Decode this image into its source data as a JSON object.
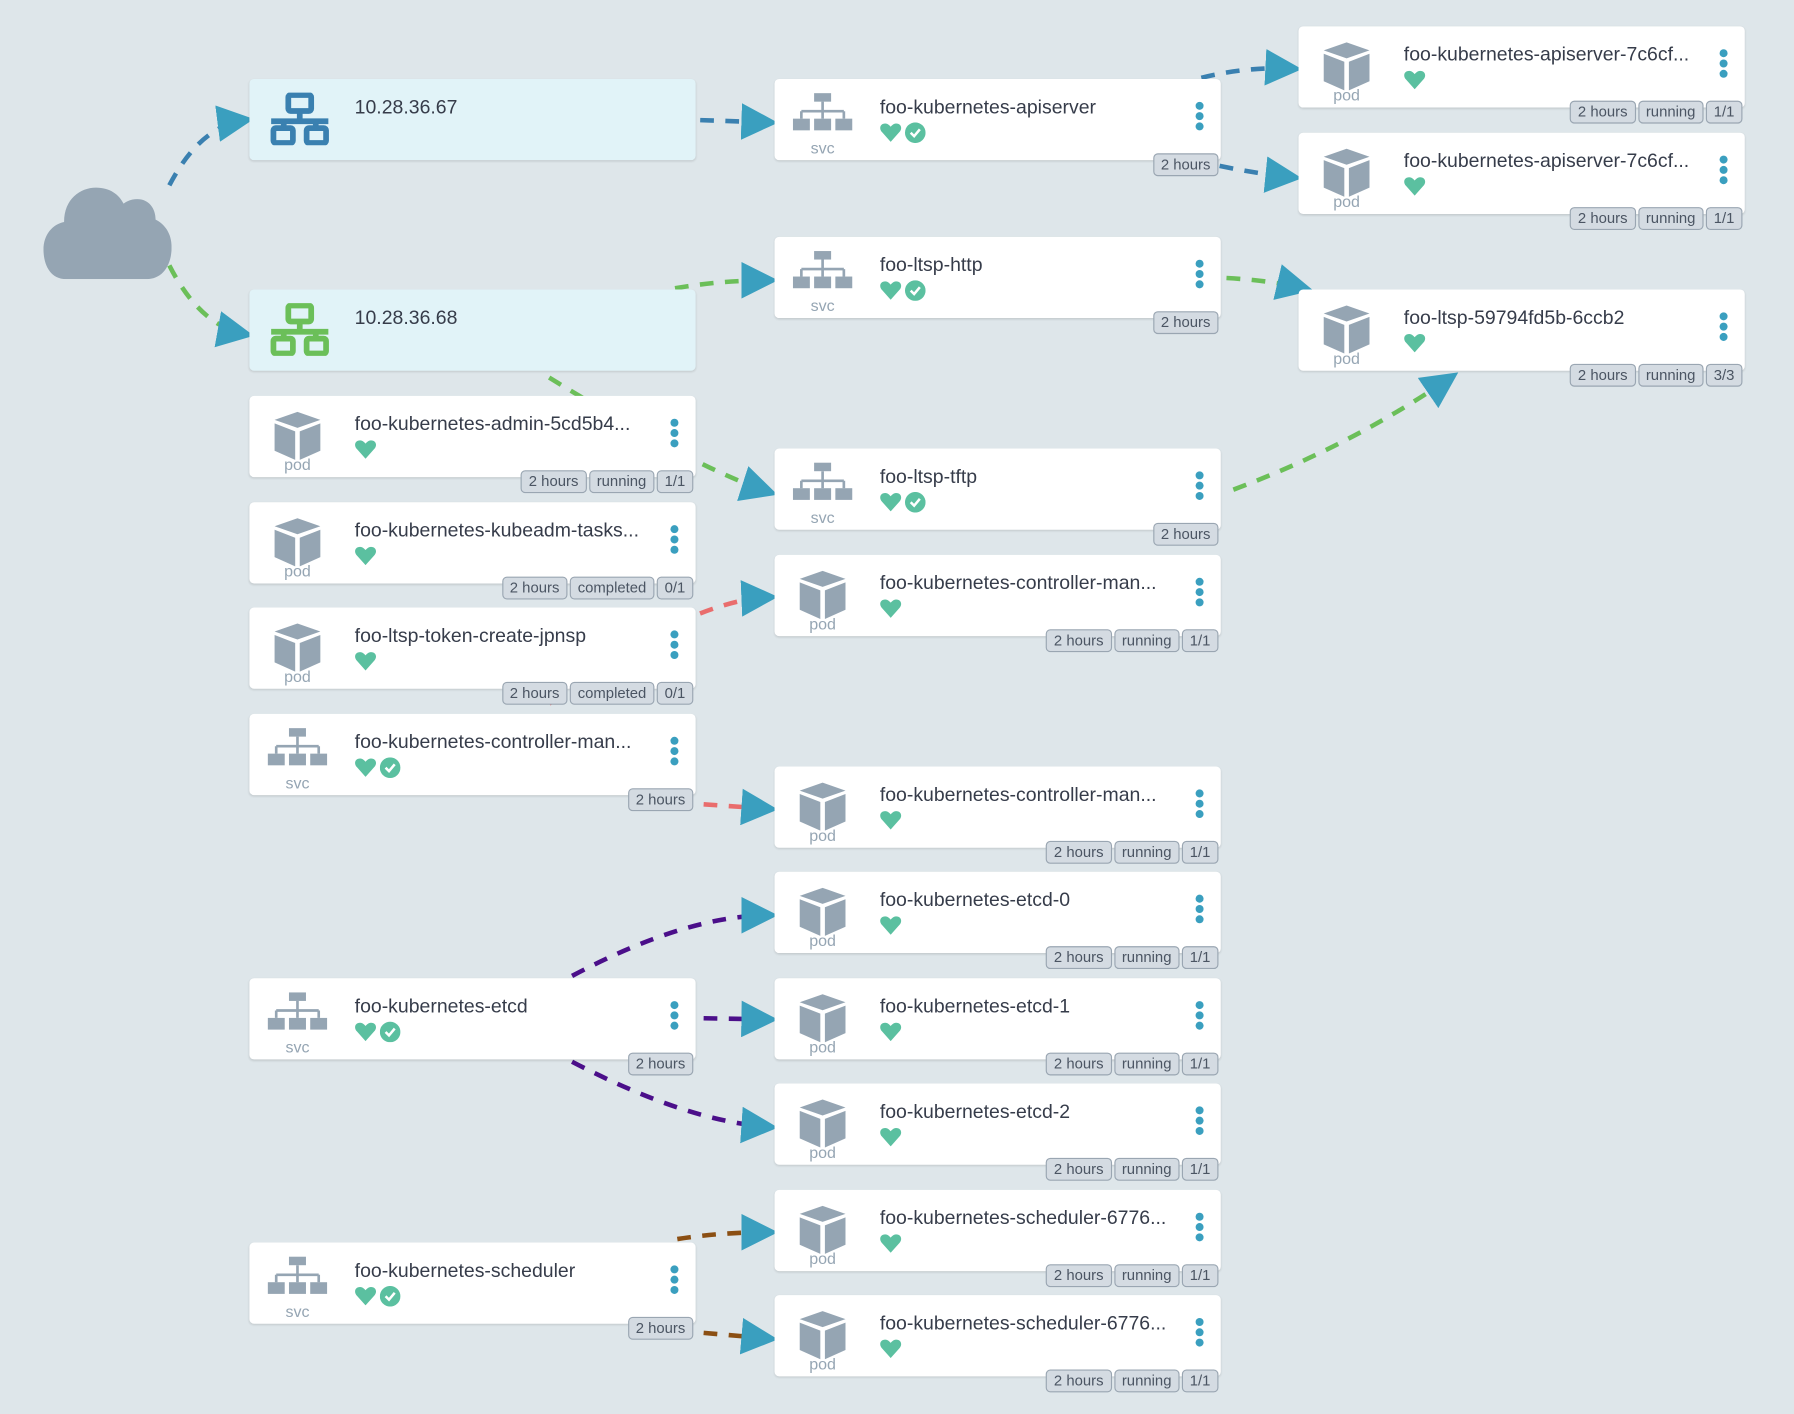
{
  "colors": {
    "ip_blue": "#3a80b0",
    "ip_green": "#6bbf59",
    "red": "#e96d6d",
    "purple": "#4b0f8a",
    "brown": "#8b4f13",
    "arrow": "#3a9fbf",
    "health": "#5bc0a0",
    "icon_gray": "#95a5b3"
  },
  "cloud": {
    "icon": "cloud-icon"
  },
  "nodes": [
    {
      "id": "ip1",
      "kind": "ip",
      "label": "",
      "name": "10.28.36.67",
      "color": "#3a80b0",
      "health": false,
      "sync": false,
      "badges": []
    },
    {
      "id": "ip2",
      "kind": "ip",
      "label": "",
      "name": "10.28.36.68",
      "color": "#6bbf59",
      "health": false,
      "sync": false,
      "badges": []
    },
    {
      "id": "p-admin",
      "kind": "pod",
      "label": "pod",
      "name": "foo-kubernetes-admin-5cd5b4...",
      "health": true,
      "sync": false,
      "badges": [
        "2 hours",
        "running",
        "1/1"
      ]
    },
    {
      "id": "p-kubeadm",
      "kind": "pod",
      "label": "pod",
      "name": "foo-kubernetes-kubeadm-tasks...",
      "health": true,
      "sync": false,
      "badges": [
        "2 hours",
        "completed",
        "0/1"
      ]
    },
    {
      "id": "p-token",
      "kind": "pod",
      "label": "pod",
      "name": "foo-ltsp-token-create-jpnsp",
      "health": true,
      "sync": false,
      "badges": [
        "2 hours",
        "completed",
        "0/1"
      ]
    },
    {
      "id": "s-cm",
      "kind": "svc",
      "label": "svc",
      "name": "foo-kubernetes-controller-man...",
      "health": true,
      "sync": true,
      "badges": [
        "2 hours"
      ]
    },
    {
      "id": "s-etcd",
      "kind": "svc",
      "label": "svc",
      "name": "foo-kubernetes-etcd",
      "health": true,
      "sync": true,
      "badges": [
        "2 hours"
      ]
    },
    {
      "id": "s-sched",
      "kind": "svc",
      "label": "svc",
      "name": "foo-kubernetes-scheduler",
      "health": true,
      "sync": true,
      "badges": [
        "2 hours"
      ]
    },
    {
      "id": "s-api",
      "kind": "svc",
      "label": "svc",
      "name": "foo-kubernetes-apiserver",
      "health": true,
      "sync": true,
      "badges": [
        "2 hours"
      ]
    },
    {
      "id": "s-http",
      "kind": "svc",
      "label": "svc",
      "name": "foo-ltsp-http",
      "health": true,
      "sync": true,
      "badges": [
        "2 hours"
      ]
    },
    {
      "id": "s-tftp",
      "kind": "svc",
      "label": "svc",
      "name": "foo-ltsp-tftp",
      "health": true,
      "sync": true,
      "badges": [
        "2 hours"
      ]
    },
    {
      "id": "p-cm1",
      "kind": "pod",
      "label": "pod",
      "name": "foo-kubernetes-controller-man...",
      "health": true,
      "sync": false,
      "badges": [
        "2 hours",
        "running",
        "1/1"
      ]
    },
    {
      "id": "p-cm2",
      "kind": "pod",
      "label": "pod",
      "name": "foo-kubernetes-controller-man...",
      "health": true,
      "sync": false,
      "badges": [
        "2 hours",
        "running",
        "1/1"
      ]
    },
    {
      "id": "p-etcd0",
      "kind": "pod",
      "label": "pod",
      "name": "foo-kubernetes-etcd-0",
      "health": true,
      "sync": false,
      "badges": [
        "2 hours",
        "running",
        "1/1"
      ]
    },
    {
      "id": "p-etcd1",
      "kind": "pod",
      "label": "pod",
      "name": "foo-kubernetes-etcd-1",
      "health": true,
      "sync": false,
      "badges": [
        "2 hours",
        "running",
        "1/1"
      ]
    },
    {
      "id": "p-etcd2",
      "kind": "pod",
      "label": "pod",
      "name": "foo-kubernetes-etcd-2",
      "health": true,
      "sync": false,
      "badges": [
        "2 hours",
        "running",
        "1/1"
      ]
    },
    {
      "id": "p-sched1",
      "kind": "pod",
      "label": "pod",
      "name": "foo-kubernetes-scheduler-6776...",
      "health": true,
      "sync": false,
      "badges": [
        "2 hours",
        "running",
        "1/1"
      ]
    },
    {
      "id": "p-sched2",
      "kind": "pod",
      "label": "pod",
      "name": "foo-kubernetes-scheduler-6776...",
      "health": true,
      "sync": false,
      "badges": [
        "2 hours",
        "running",
        "1/1"
      ]
    },
    {
      "id": "p-api1",
      "kind": "pod",
      "label": "pod",
      "name": "foo-kubernetes-apiserver-7c6cf...",
      "health": true,
      "sync": false,
      "badges": [
        "2 hours",
        "running",
        "1/1"
      ]
    },
    {
      "id": "p-api2",
      "kind": "pod",
      "label": "pod",
      "name": "foo-kubernetes-apiserver-7c6cf...",
      "health": true,
      "sync": false,
      "badges": [
        "2 hours",
        "running",
        "1/1"
      ]
    },
    {
      "id": "p-ltsp",
      "kind": "pod",
      "label": "pod",
      "name": "foo-ltsp-59794fd5b-6ccb2",
      "health": true,
      "sync": false,
      "badges": [
        "2 hours",
        "running",
        "3/3"
      ]
    }
  ]
}
